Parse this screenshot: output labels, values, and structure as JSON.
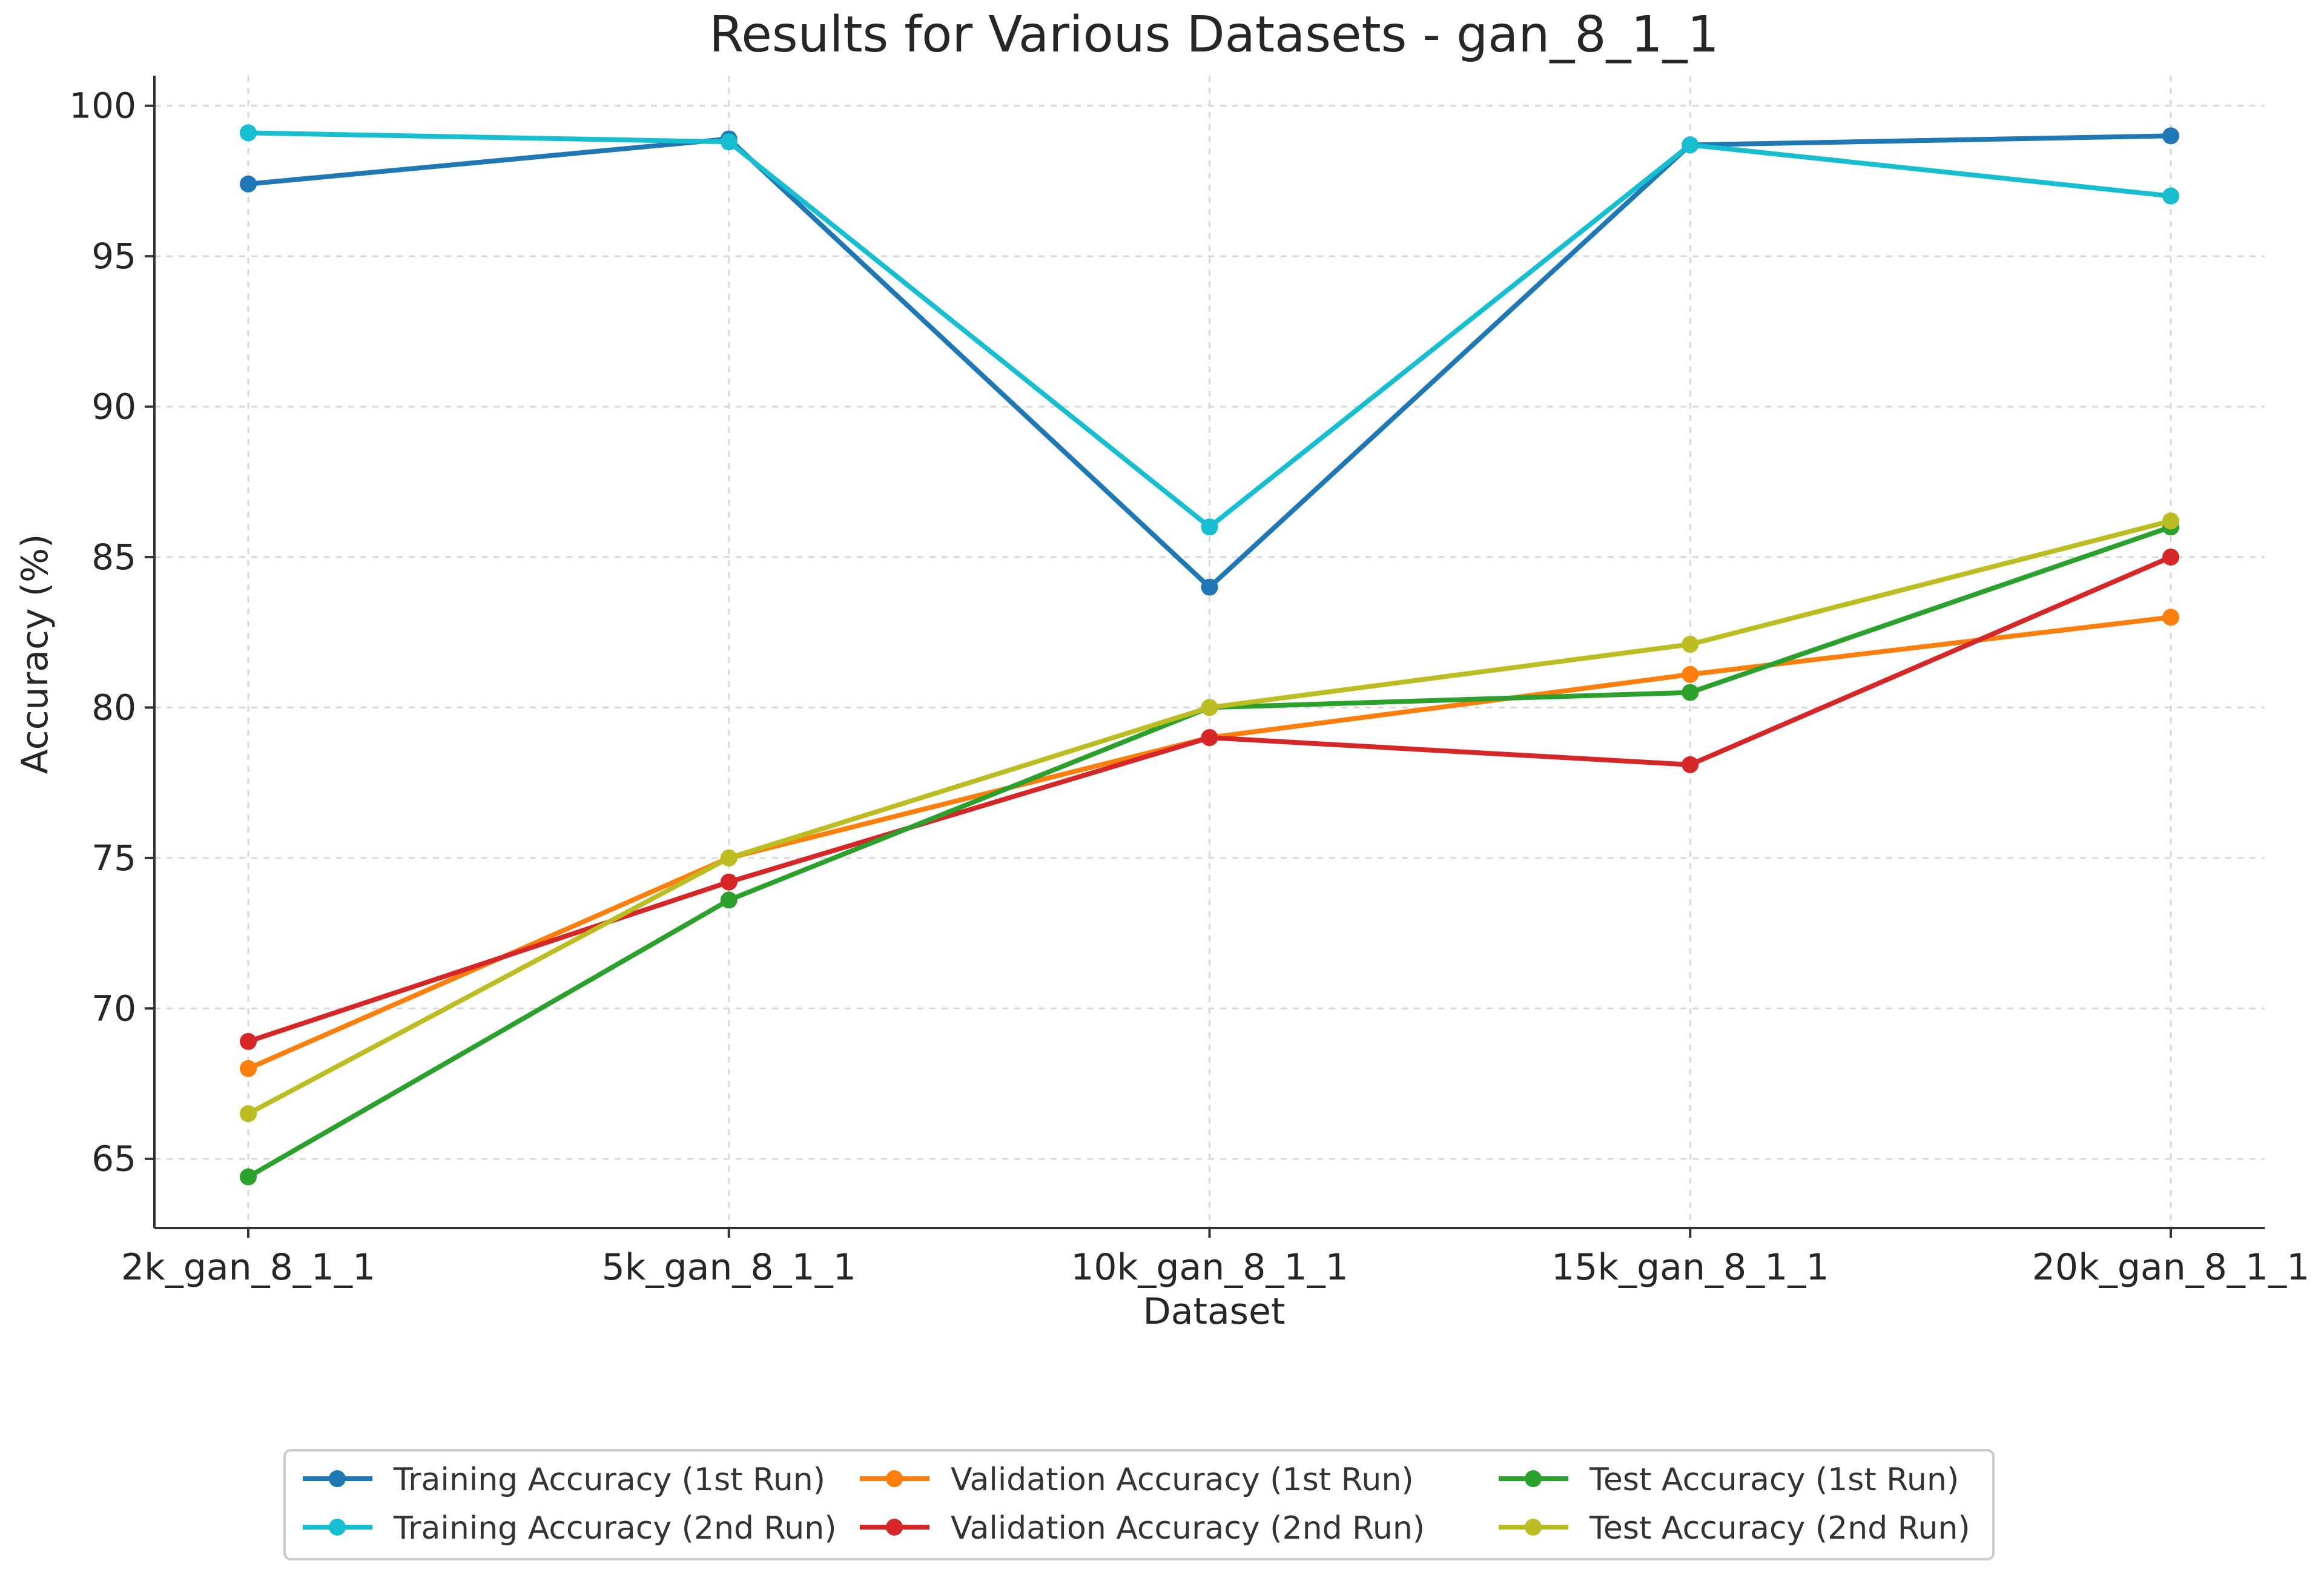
{
  "chart_data": {
    "type": "line",
    "title": "Results for Various Datasets - gan_8_1_1",
    "xlabel": "Dataset",
    "ylabel": "Accuracy (%)",
    "categories": [
      "2k_gan_8_1_1",
      "5k_gan_8_1_1",
      "10k_gan_8_1_1",
      "15k_gan_8_1_1",
      "20k_gan_8_1_1"
    ],
    "ylim": [
      62.7,
      101
    ],
    "yticks": [
      65,
      70,
      75,
      80,
      85,
      90,
      95,
      100
    ],
    "grid": true,
    "legend_position": "bottom",
    "series": [
      {
        "name": "Training Accuracy (1st Run)",
        "color": "#1f77b4",
        "values": [
          97.4,
          98.9,
          84.0,
          98.7,
          99.0
        ]
      },
      {
        "name": "Training Accuracy (2nd Run)",
        "color": "#17becf",
        "values": [
          99.1,
          98.8,
          86.0,
          98.7,
          97.0
        ]
      },
      {
        "name": "Validation Accuracy (1st Run)",
        "color": "#ff7f0e",
        "values": [
          68.0,
          75.0,
          79.0,
          81.1,
          83.0
        ]
      },
      {
        "name": "Validation Accuracy (2nd Run)",
        "color": "#d62728",
        "values": [
          68.9,
          74.2,
          79.0,
          78.1,
          85.0
        ]
      },
      {
        "name": "Test Accuracy (1st Run)",
        "color": "#2ca02c",
        "values": [
          64.4,
          73.6,
          80.0,
          80.5,
          86.0
        ]
      },
      {
        "name": "Test Accuracy (2nd Run)",
        "color": "#bcbd22",
        "values": [
          66.5,
          75.0,
          80.0,
          82.1,
          86.2
        ]
      }
    ]
  }
}
